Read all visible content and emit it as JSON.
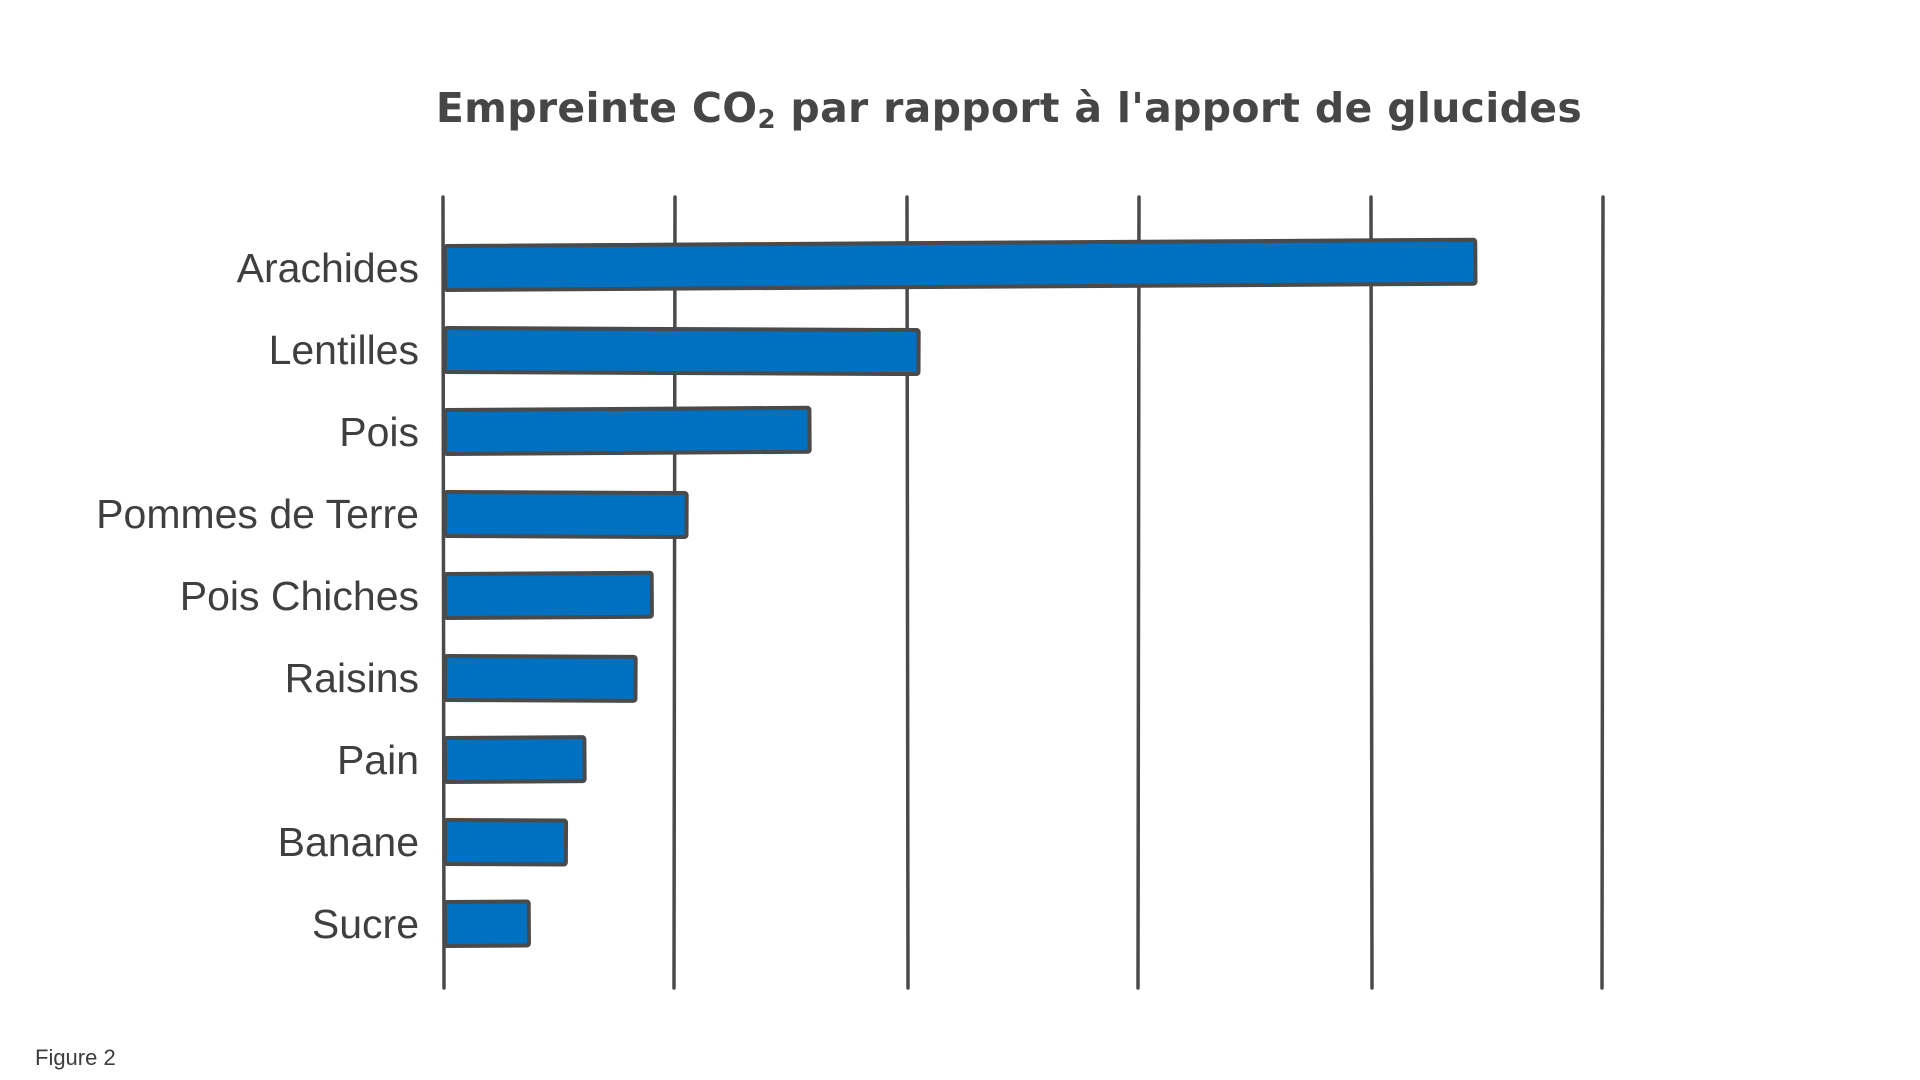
{
  "title": {
    "main": "Empreinte CO",
    "subscript": "2",
    "rest": " par rapport à l'apport de glucides"
  },
  "caption": "Figure 2",
  "colors": {
    "bar_fill": "#0070c0",
    "bar_outline": "#4a4a4a",
    "grid": "#4a4a4a",
    "text": "#3f3f3f"
  },
  "chart_data": {
    "type": "bar",
    "orientation": "horizontal",
    "title": "Empreinte CO₂ par rapport à l'apport de glucides",
    "xlabel": "",
    "ylabel": "",
    "categories": [
      "Arachides",
      "Lentilles",
      "Pois",
      "Pommes de Terre",
      "Pois Chiches",
      "Raisins",
      "Pain",
      "Banane",
      "Sucre"
    ],
    "values": [
      4.45,
      2.05,
      1.58,
      1.05,
      0.9,
      0.83,
      0.61,
      0.53,
      0.37
    ],
    "xlim": [
      0,
      5
    ],
    "gridlines": [
      0,
      1,
      2,
      3,
      4,
      5
    ],
    "tick_labels_shown": false,
    "grid": true,
    "legend": "none"
  }
}
